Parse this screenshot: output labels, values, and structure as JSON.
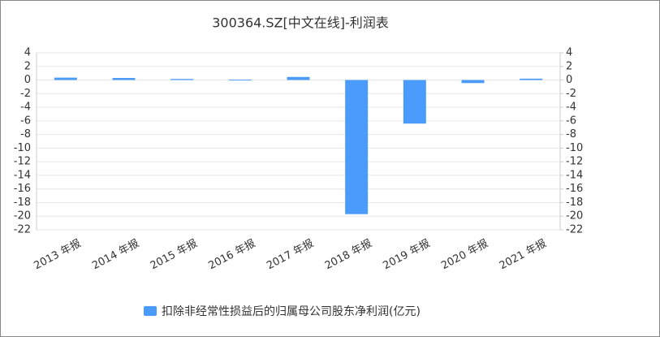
{
  "chart_data": {
    "type": "bar",
    "title": "300364.SZ[中文在线]-利润表",
    "categories": [
      "2013 年报",
      "2014 年报",
      "2015 年报",
      "2016 年报",
      "2017 年报",
      "2018 年报",
      "2019 年报",
      "2020 年报",
      "2021 年报"
    ],
    "series": [
      {
        "name": "扣除非经常性损益后的归属母公司股东净利润(亿元)",
        "color": "#4a9bfc",
        "values": [
          0.35,
          0.3,
          0.15,
          0.05,
          0.45,
          -19.7,
          -6.4,
          -0.45,
          0.2
        ]
      }
    ],
    "ylim": [
      -22,
      4
    ],
    "yticks": [
      4,
      2,
      0,
      -2,
      -4,
      -6,
      -8,
      -10,
      -12,
      -14,
      -16,
      -18,
      -20,
      -22
    ],
    "y2lim": [
      -22,
      4
    ],
    "y2ticks": [
      4,
      2,
      0,
      -2,
      -4,
      -6,
      -8,
      -10,
      -12,
      -14,
      -16,
      -18,
      -20,
      -22
    ],
    "grid": true,
    "legend": "bottom"
  }
}
